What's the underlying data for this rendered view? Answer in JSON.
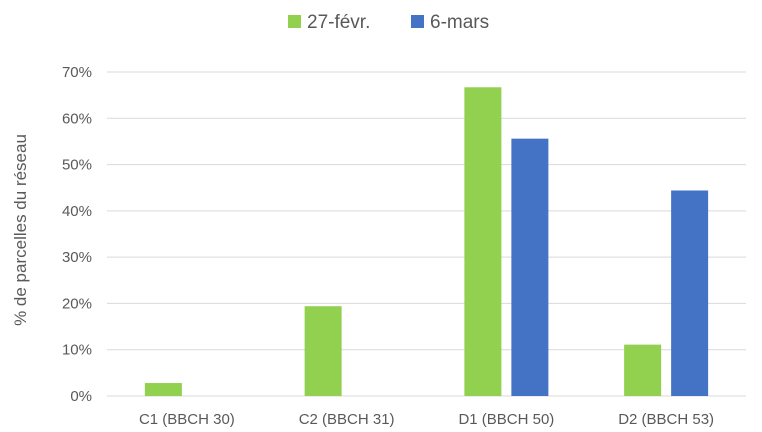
{
  "chart_data": {
    "type": "bar",
    "title": "",
    "xlabel": "",
    "ylabel": "% de parcelles du réseau",
    "categories": [
      "C1 (BBCH 30)",
      "C2 (BBCH 31)",
      "D1 (BBCH 50)",
      "D2 (BBCH 53)"
    ],
    "series": [
      {
        "name": "27-févr.",
        "color": "#92d050",
        "values": [
          2.8,
          19.4,
          66.7,
          11.1
        ]
      },
      {
        "name": "6-mars",
        "color": "#4472c4",
        "values": [
          0,
          0,
          55.6,
          44.4
        ]
      }
    ],
    "ylim": [
      0,
      70
    ],
    "yticks": [
      0,
      10,
      20,
      30,
      40,
      50,
      60,
      70
    ],
    "ytick_format": "percent",
    "grid": true,
    "legend_position": "top"
  }
}
